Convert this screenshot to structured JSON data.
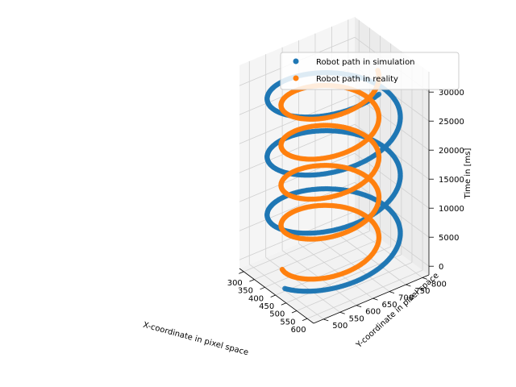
{
  "chart_data": {
    "type": "scatter",
    "projection": "3d",
    "title": "",
    "xlabel": "X-coordinate in pixel space",
    "ylabel": "Y-coordinate in pixel space",
    "zlabel": "Time in [ms]",
    "xlim": [
      280,
      630
    ],
    "ylim": [
      470,
      820
    ],
    "zlim": [
      -1500,
      33500
    ],
    "xticks": [
      300,
      350,
      400,
      450,
      500,
      550,
      600
    ],
    "yticks": [
      500,
      550,
      600,
      650,
      700,
      750,
      800
    ],
    "zticks": [
      0,
      5000,
      10000,
      15000,
      20000,
      25000,
      30000
    ],
    "grid": true,
    "legend_position": "top-right",
    "series": [
      {
        "name": "Robot path in simulation",
        "color": "#1f77b4",
        "kind": "helix",
        "center": [
          445,
          650
        ],
        "radius": 170,
        "turns": 3.25,
        "t_range": [
          0,
          32500
        ],
        "start_angle_deg": 280,
        "samples": 700
      },
      {
        "name": "Robot path in reality",
        "color": "#ff7f0e",
        "kind": "helix",
        "center": [
          435,
          645
        ],
        "radius": 125,
        "turns": 4.5,
        "t_range": [
          0,
          31000
        ],
        "start_angle_deg": 250,
        "samples": 700
      }
    ]
  }
}
